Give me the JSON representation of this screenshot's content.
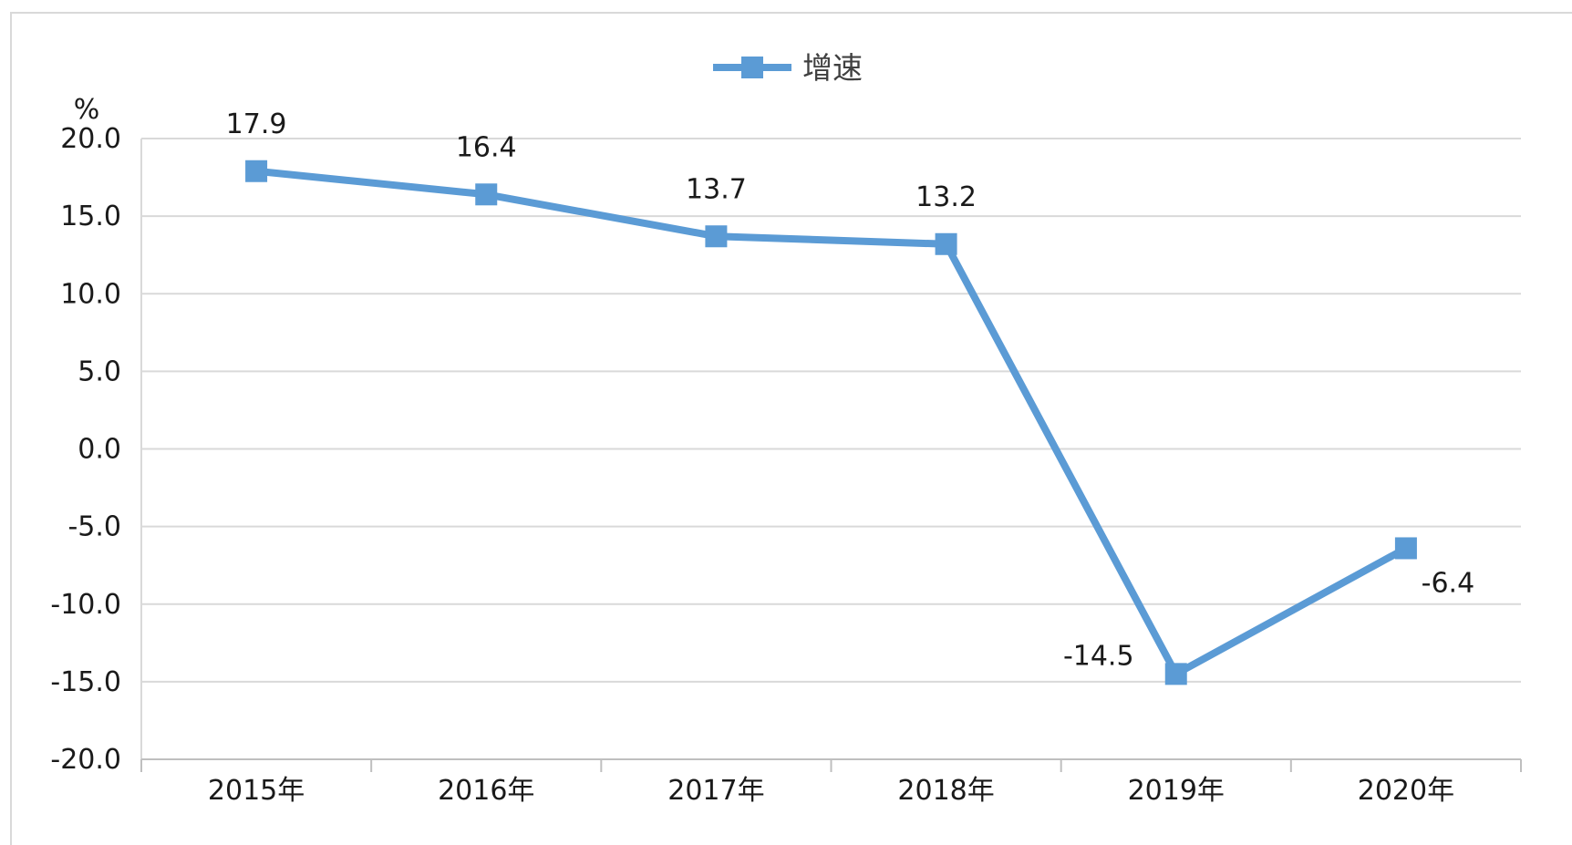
{
  "chart_data": {
    "type": "line",
    "title": "",
    "ylabel": "%",
    "xlabel": "",
    "categories": [
      "2015年",
      "2016年",
      "2017年",
      "2018年",
      "2019年",
      "2020年"
    ],
    "series": [
      {
        "name": "增速",
        "values": [
          17.9,
          16.4,
          13.7,
          13.2,
          -14.5,
          -6.4
        ],
        "data_labels": [
          "17.9",
          "16.4",
          "13.7",
          "13.2",
          "-14.5",
          "-6.4"
        ],
        "color": "#5b9bd5",
        "marker": "square"
      }
    ],
    "ylim": [
      -20,
      20
    ],
    "yticks": [
      "20.0",
      "15.0",
      "10.0",
      "5.0",
      "0.0",
      "-5.0",
      "-10.0",
      "-15.0",
      "-20.0"
    ],
    "grid": true,
    "legend": "top-center"
  }
}
